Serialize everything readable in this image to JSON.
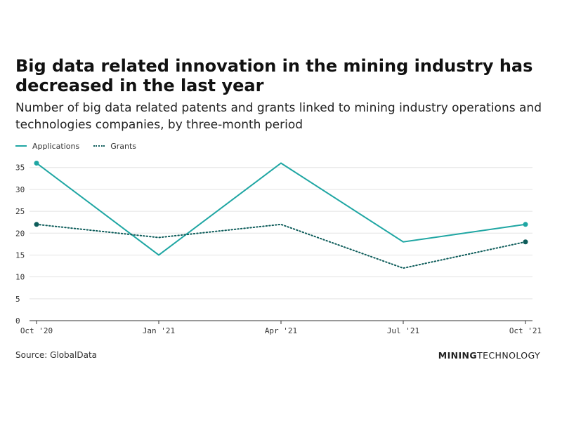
{
  "title": "Big data related innovation in the mining industry has decreased in the last year",
  "subtitle": "Number of big data related patents and grants linked to mining industry operations and technologies companies, by three-month period",
  "legend": {
    "applications": "Applications",
    "grants": "Grants"
  },
  "source": "Source: GlobalData",
  "brand": {
    "bold": "MINING",
    "light": "TECHNOLOGY"
  },
  "colors": {
    "applications": "#1fa6a3",
    "grants": "#0d5c5a",
    "grid": "#e3e3e3",
    "axis": "#333333"
  },
  "chart_data": {
    "type": "line",
    "categories": [
      "Oct '20",
      "Jan '21",
      "Apr '21",
      "Jul '21",
      "Oct '21"
    ],
    "series": [
      {
        "name": "Applications",
        "values": [
          36,
          15,
          36,
          18,
          22
        ],
        "style": "solid"
      },
      {
        "name": "Grants",
        "values": [
          22,
          19,
          22,
          12,
          18
        ],
        "style": "dotted"
      }
    ],
    "yticks": [
      0,
      5,
      10,
      15,
      20,
      25,
      30,
      35
    ],
    "ylim": [
      0,
      38
    ],
    "grid": true,
    "legend_position": "top-left",
    "endpoint_markers": true,
    "xlabel": "",
    "ylabel": ""
  }
}
